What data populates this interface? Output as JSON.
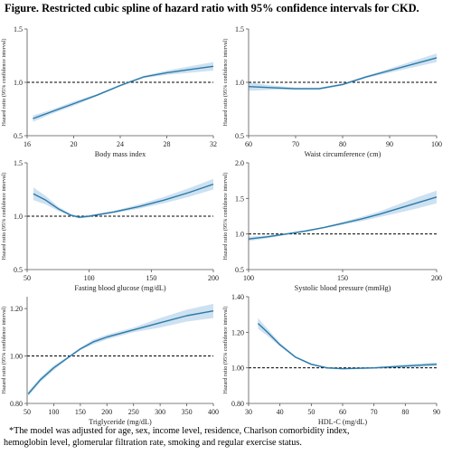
{
  "figure": {
    "title": "Figure. Restricted cubic spline of hazard ratio with 95% confidence intervals for CKD.",
    "footnote": [
      "*The model was adjusted for age, sex, income level, residence, Charlson comorbidity index,",
      "hemoglobin level, glomerular filtration rate, smoking and regular exercise status."
    ]
  },
  "colors": {
    "line": "#2a7aa8",
    "band": "#c5dcee",
    "reference": "#000000",
    "axis": "#555555"
  },
  "chart_data": [
    {
      "type": "line",
      "xlabel": "Body mass index",
      "ylabel": "Hazard ratio (95% confidence interval)",
      "xlim": [
        16,
        32
      ],
      "ylim": [
        0.5,
        1.5
      ],
      "xticks": [
        16,
        20,
        24,
        28,
        32
      ],
      "xtick_labels": [
        "16",
        "20",
        "24",
        "28",
        "32"
      ],
      "yticks": [
        0.5,
        1.0,
        1.5
      ],
      "ytick_labels": [
        "0.5",
        "1.0",
        "1.5"
      ],
      "reference_y": 1.0,
      "x": [
        16.5,
        18,
        20,
        22,
        24,
        26,
        28,
        30,
        32
      ],
      "y": [
        0.66,
        0.72,
        0.8,
        0.88,
        0.97,
        1.05,
        1.09,
        1.12,
        1.15
      ],
      "lower": [
        0.63,
        0.7,
        0.78,
        0.87,
        0.96,
        1.04,
        1.07,
        1.09,
        1.11
      ],
      "upper": [
        0.69,
        0.74,
        0.82,
        0.89,
        0.98,
        1.06,
        1.11,
        1.15,
        1.19
      ]
    },
    {
      "type": "line",
      "xlabel": "Waist circumference (cm)",
      "ylabel": "Hazard ratio (95% confidence interval)",
      "xlim": [
        60,
        100
      ],
      "ylim": [
        0.5,
        1.5
      ],
      "xticks": [
        60,
        70,
        80,
        90,
        100
      ],
      "xtick_labels": [
        "60",
        "70",
        "80",
        "90",
        "100"
      ],
      "yticks": [
        0.5,
        1.0,
        1.5
      ],
      "ytick_labels": [
        "0.5",
        "1.0",
        "1.5"
      ],
      "reference_y": 1.0,
      "x": [
        60,
        65,
        70,
        75,
        80,
        85,
        90,
        95,
        100
      ],
      "y": [
        0.96,
        0.95,
        0.94,
        0.94,
        0.98,
        1.05,
        1.11,
        1.17,
        1.23
      ],
      "lower": [
        0.92,
        0.93,
        0.93,
        0.93,
        0.97,
        1.04,
        1.09,
        1.14,
        1.19
      ],
      "upper": [
        1.0,
        0.97,
        0.95,
        0.95,
        0.99,
        1.06,
        1.13,
        1.2,
        1.27
      ]
    },
    {
      "type": "line",
      "xlabel": "Fasting blood glucose (mg/dL)",
      "ylabel": "Hazard ratio (95% confidence interval)",
      "xlim": [
        50,
        200
      ],
      "ylim": [
        0.5,
        1.5
      ],
      "xticks": [
        50,
        100,
        150,
        200
      ],
      "xtick_labels": [
        "50",
        "100",
        "150",
        "200"
      ],
      "yticks": [
        0.5,
        1.0,
        1.5
      ],
      "ytick_labels": [
        "0.5",
        "1.0",
        "1.5"
      ],
      "reference_y": 1.0,
      "x": [
        55,
        65,
        75,
        85,
        92,
        100,
        120,
        140,
        160,
        180,
        200
      ],
      "y": [
        1.21,
        1.15,
        1.07,
        1.01,
        0.99,
        1.0,
        1.04,
        1.09,
        1.15,
        1.22,
        1.3
      ],
      "lower": [
        1.15,
        1.11,
        1.05,
        1.0,
        0.98,
        0.99,
        1.03,
        1.07,
        1.12,
        1.18,
        1.25
      ],
      "upper": [
        1.27,
        1.19,
        1.09,
        1.02,
        1.0,
        1.01,
        1.05,
        1.11,
        1.18,
        1.26,
        1.35
      ]
    },
    {
      "type": "line",
      "xlabel": "Systolic blood pressure (mmHg)",
      "ylabel": "Hazard ratio (95% confidence interval)",
      "xlim": [
        100,
        200
      ],
      "ylim": [
        0.5,
        2.0
      ],
      "xticks": [
        100,
        150,
        200
      ],
      "xtick_labels": [
        "100",
        "150",
        "200"
      ],
      "yticks": [
        0.5,
        1.0,
        1.5,
        2.0
      ],
      "ytick_labels": [
        "0.5",
        "1.0",
        "1.5",
        "2.0"
      ],
      "reference_y": 1.0,
      "x": [
        100,
        110,
        120,
        130,
        140,
        150,
        160,
        170,
        180,
        190,
        200
      ],
      "y": [
        0.93,
        0.96,
        1.0,
        1.04,
        1.09,
        1.15,
        1.21,
        1.28,
        1.36,
        1.44,
        1.52
      ],
      "lower": [
        0.9,
        0.94,
        0.99,
        1.03,
        1.08,
        1.13,
        1.18,
        1.24,
        1.3,
        1.36,
        1.43
      ],
      "upper": [
        0.96,
        0.98,
        1.01,
        1.05,
        1.1,
        1.17,
        1.24,
        1.32,
        1.42,
        1.52,
        1.61
      ]
    },
    {
      "type": "line",
      "xlabel": "Triglyceride (mg/dL)",
      "ylabel": "Hazard ratio (95% confidence interval)",
      "xlim": [
        50,
        400
      ],
      "ylim": [
        0.8,
        1.25
      ],
      "xticks": [
        50,
        100,
        150,
        200,
        250,
        300,
        350,
        400
      ],
      "xtick_labels": [
        "50",
        "100",
        "150",
        "200",
        "250",
        "300",
        "350",
        "400"
      ],
      "yticks": [
        0.8,
        1.0,
        1.2
      ],
      "ytick_labels": [
        "0.80",
        "1.00",
        "1.20"
      ],
      "reference_y": 1.0,
      "x": [
        52,
        75,
        100,
        125,
        150,
        175,
        200,
        250,
        300,
        350,
        400
      ],
      "y": [
        0.84,
        0.9,
        0.95,
        0.99,
        1.03,
        1.06,
        1.08,
        1.11,
        1.14,
        1.17,
        1.19
      ],
      "lower": [
        0.83,
        0.89,
        0.94,
        0.985,
        1.025,
        1.05,
        1.07,
        1.1,
        1.12,
        1.145,
        1.16
      ],
      "upper": [
        0.85,
        0.91,
        0.96,
        0.995,
        1.035,
        1.07,
        1.09,
        1.12,
        1.16,
        1.195,
        1.22
      ]
    },
    {
      "type": "line",
      "xlabel": "HDL-C (mg/dL)",
      "ylabel": "Hazard ratio (95% confidence interval)",
      "xlim": [
        30,
        90
      ],
      "ylim": [
        0.8,
        1.4
      ],
      "xticks": [
        30,
        40,
        50,
        60,
        70,
        80,
        90
      ],
      "xtick_labels": [
        "30",
        "40",
        "50",
        "60",
        "70",
        "80",
        "90"
      ],
      "yticks": [
        0.8,
        1.0,
        1.2,
        1.4
      ],
      "ytick_labels": [
        "0.80",
        "1.00",
        "1.20",
        "1.40"
      ],
      "reference_y": 1.0,
      "x": [
        33,
        36,
        40,
        45,
        50,
        55,
        60,
        70,
        80,
        90
      ],
      "y": [
        1.25,
        1.2,
        1.13,
        1.06,
        1.02,
        1.0,
        0.995,
        1.0,
        1.01,
        1.02
      ],
      "lower": [
        1.22,
        1.18,
        1.12,
        1.055,
        1.015,
        0.995,
        0.99,
        0.995,
        1.0,
        1.01
      ],
      "upper": [
        1.28,
        1.22,
        1.14,
        1.065,
        1.025,
        1.005,
        1.0,
        1.005,
        1.02,
        1.03
      ]
    }
  ]
}
